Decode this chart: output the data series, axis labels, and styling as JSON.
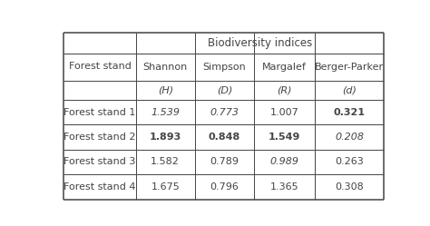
{
  "title": "Biodiversity indices",
  "col_header_names": [
    "Shannon",
    "Simpson",
    "Margalef",
    "Berger-Parker"
  ],
  "col_subheaders": [
    "(H)",
    "(D)",
    "(R)",
    "(d)"
  ],
  "rows": [
    [
      "Forest stand 1",
      "1.539",
      "0.773",
      "1.007",
      "0.321"
    ],
    [
      "Forest stand 2",
      "1.893",
      "0.848",
      "1.549",
      "0.208"
    ],
    [
      "Forest stand 3",
      "1.582",
      "0.789",
      "0.989",
      "0.263"
    ],
    [
      "Forest stand 4",
      "1.675",
      "0.796",
      "1.365",
      "0.308"
    ]
  ],
  "style_map": {
    "0,1": [
      false,
      true
    ],
    "0,2": [
      false,
      true
    ],
    "0,4": [
      true,
      false
    ],
    "1,1": [
      true,
      false
    ],
    "1,2": [
      true,
      false
    ],
    "1,3": [
      true,
      false
    ],
    "1,4": [
      false,
      true
    ],
    "2,3": [
      false,
      true
    ]
  },
  "background_color": "#ffffff",
  "line_color": "#444444",
  "font_size": 8.0,
  "header_font_size": 8.5
}
